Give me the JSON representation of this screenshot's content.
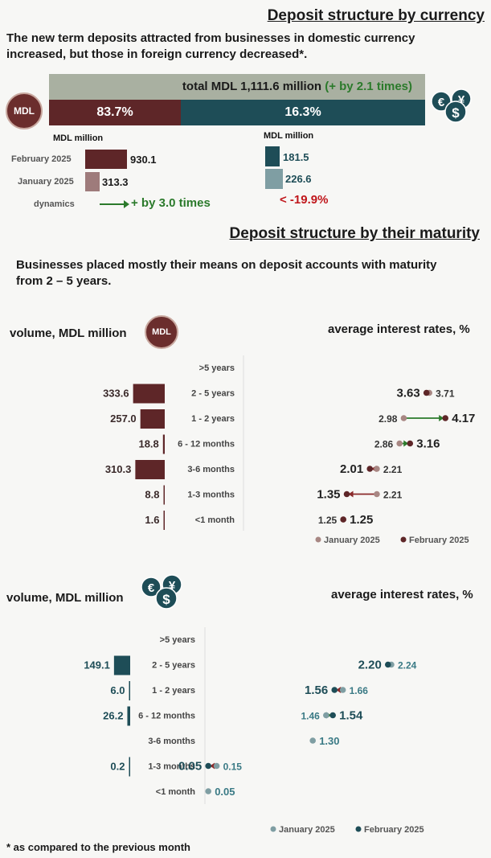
{
  "currency": {
    "title": "Deposit structure by currency",
    "lead": "The new term deposits attracted from businesses in domestic currency increased, but those in foreign currency decreased*.",
    "total_label": "total MDL 1,111.6 million",
    "total_change": "(+ by 2.1 times)",
    "mdl_share": "83.7%",
    "fx_share": "16.3%",
    "mdl_coin": "MDL",
    "unit_left": "MDL million",
    "unit_right": "MDL million",
    "rows": [
      {
        "label": "February 2025",
        "mdl": "930.1",
        "fx": "181.5"
      },
      {
        "label": "January 2025",
        "mdl": "313.3",
        "fx": "226.6"
      }
    ],
    "dynamics_label": "dynamics",
    "dynamics_mdl": "+ by 3.0 times",
    "dynamics_fx": "< -19.9%",
    "colors": {
      "mdl": "#5e2628",
      "mdl_light": "#9e7b7b",
      "fx": "#1e4d57",
      "fx_light": "#7f9ea3",
      "green": "#2b7a2b",
      "red": "#c0161b"
    }
  },
  "maturity": {
    "title": "Deposit structure by their maturity",
    "lead": "Businesses placed mostly their means on deposit accounts with maturity from 2 – 5 years.",
    "volume_label": "volume, MDL million",
    "rates_label": "average interest rates, %",
    "coin_label": "MDL",
    "legend_jan": "January 2025",
    "legend_feb": "February 2025",
    "footnote": "* as compared to the previous month"
  },
  "chart_data": [
    {
      "type": "bar",
      "title": "Deposit structure by currency (MDL million)",
      "categories": [
        "February 2025",
        "January 2025"
      ],
      "series": [
        {
          "name": "MDL",
          "values": [
            930.1,
            313.3
          ]
        },
        {
          "name": "Foreign currency",
          "values": [
            181.5,
            226.6
          ]
        }
      ]
    },
    {
      "type": "bar",
      "title": "Volume, MDL million (MDL deposits, February 2025)",
      "categories": [
        ">5 years",
        "2 - 5 years",
        "1 - 2 years",
        "6 - 12 months",
        "3-6 months",
        "1-3 months",
        "<1 month"
      ],
      "values": [
        null,
        333.6,
        257.0,
        18.8,
        310.3,
        8.8,
        1.6
      ],
      "labels": [
        "",
        "333.6",
        "257.0",
        "18.8",
        "310.3",
        "8.8",
        "1.6"
      ]
    },
    {
      "type": "scatter",
      "title": "Average interest rates, % (MDL)",
      "categories": [
        ">5 years",
        "2 - 5 years",
        "1 - 2 years",
        "6 - 12 months",
        "3-6 months",
        "1-3 months",
        "<1 month"
      ],
      "series": [
        {
          "name": "January 2025",
          "values": [
            null,
            3.71,
            2.98,
            2.86,
            2.21,
            2.21,
            1.25
          ],
          "labels": [
            "",
            "3.71",
            "2.98",
            "2.86",
            "2.21",
            "2.21",
            "1.25"
          ]
        },
        {
          "name": "February 2025",
          "values": [
            null,
            3.63,
            4.17,
            3.16,
            2.01,
            1.35,
            1.25
          ],
          "labels": [
            "",
            "3.63",
            "4.17",
            "3.16",
            "2.01",
            "1.35",
            "1.25"
          ]
        }
      ],
      "xlim": [
        1.2,
        4.2
      ]
    },
    {
      "type": "bar",
      "title": "Volume, MDL million (foreign currency deposits, February 2025)",
      "categories": [
        ">5 years",
        "2 - 5 years",
        "1 - 2 years",
        "6 - 12 months",
        "3-6 months",
        "1-3 months",
        "<1 month"
      ],
      "values": [
        null,
        149.1,
        6.0,
        26.2,
        null,
        0.2,
        null
      ],
      "labels": [
        "",
        "149.1",
        "6.0",
        "26.2",
        "",
        "0.2",
        ""
      ]
    },
    {
      "type": "scatter",
      "title": "Average interest rates, % (foreign currency)",
      "categories": [
        ">5 years",
        "2 - 5 years",
        "1 - 2 years",
        "6 - 12 months",
        "3-6 months",
        "1-3 months",
        "<1 month"
      ],
      "series": [
        {
          "name": "January 2025",
          "values": [
            null,
            2.24,
            1.66,
            1.46,
            1.3,
            0.15,
            0.05
          ],
          "labels": [
            "",
            "2.24",
            "1.66",
            "1.46",
            "1.30",
            "0.15",
            "0.05"
          ]
        },
        {
          "name": "February 2025",
          "values": [
            null,
            2.2,
            1.56,
            1.54,
            null,
            0.05,
            null
          ],
          "labels": [
            "",
            "2.20",
            "1.56",
            "1.54",
            "",
            "0.05",
            ""
          ]
        }
      ],
      "xlim": [
        0.0,
        2.3
      ]
    }
  ]
}
